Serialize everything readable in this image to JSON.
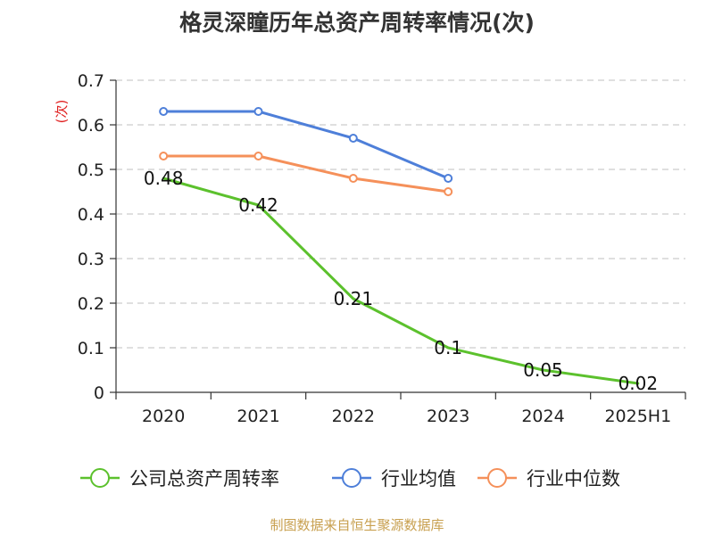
{
  "chart_data": {
    "type": "line",
    "title": "格灵深瞳历年总资产周转率情况(次)",
    "ylabel": "(次)",
    "xlabel": "",
    "categories": [
      "2020",
      "2021",
      "2022",
      "2023",
      "2024",
      "2025H1"
    ],
    "ylim": [
      0,
      0.7
    ],
    "yticks": [
      0,
      0.1,
      0.2,
      0.3,
      0.4,
      0.5,
      0.6,
      0.7
    ],
    "grid": true,
    "legend_position": "bottom",
    "series": [
      {
        "name": "公司总资产周转率",
        "color": "#5cc12d",
        "values": [
          0.48,
          0.42,
          0.21,
          0.1,
          0.05,
          0.02
        ],
        "data_labels": [
          "0.48",
          "0.42",
          "0.21",
          "0.1",
          "0.05",
          "0.02"
        ],
        "markers": false
      },
      {
        "name": "行业均值",
        "color": "#4e7fd9",
        "values": [
          0.63,
          0.63,
          0.57,
          0.48,
          null,
          null
        ],
        "markers": true
      },
      {
        "name": "行业中位数",
        "color": "#f5905a",
        "values": [
          0.53,
          0.53,
          0.48,
          0.45,
          null,
          null
        ],
        "markers": true
      }
    ]
  },
  "source": "制图数据来自恒生聚源数据库"
}
